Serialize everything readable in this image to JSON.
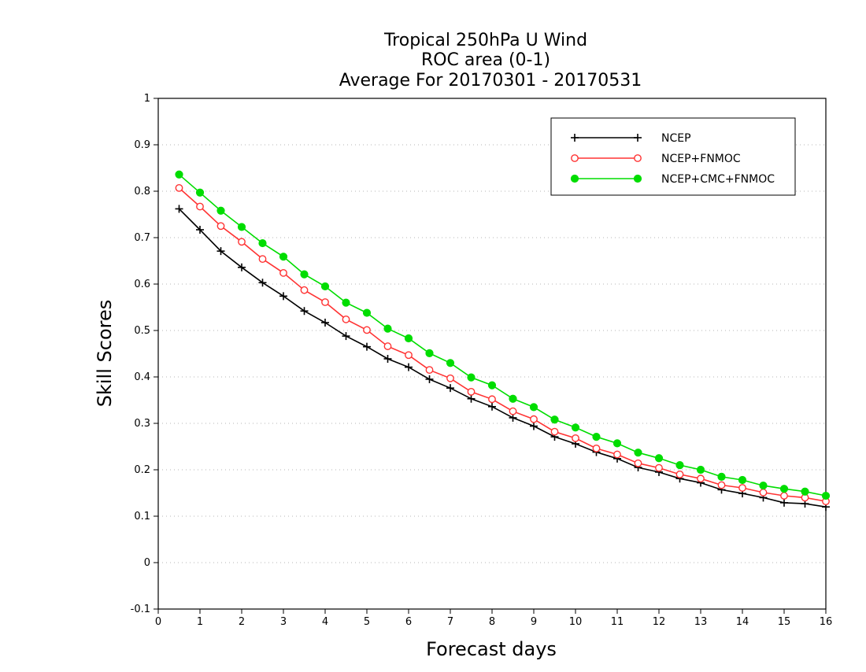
{
  "chart_data": {
    "type": "line",
    "title_lines": [
      "Tropical 250hPa U Wind",
      "ROC area (0-1)",
      "Average For 20170301 - 20170531"
    ],
    "xlabel": "Forecast days",
    "ylabel": "Skill Scores",
    "xlim": [
      0,
      16
    ],
    "ylim": [
      -0.1,
      1
    ],
    "xticks": [
      0,
      1,
      2,
      3,
      4,
      5,
      6,
      7,
      8,
      9,
      10,
      11,
      12,
      13,
      14,
      15,
      16
    ],
    "xtick_labels": [
      "0",
      "1",
      "2",
      "3",
      "4",
      "5",
      "6",
      "7",
      "8",
      "9",
      "10",
      "11",
      "12",
      "13",
      "14",
      "15",
      "16"
    ],
    "yticks": [
      -0.1,
      0,
      0.1,
      0.2,
      0.3,
      0.4,
      0.5,
      0.6,
      0.7,
      0.8,
      0.9,
      1
    ],
    "ytick_labels": [
      "-0.1",
      "0",
      "0.1",
      "0.2",
      "0.3",
      "0.4",
      "0.5",
      "0.6",
      "0.7",
      "0.8",
      "0.9",
      "1"
    ],
    "grid": "horizontal dotted",
    "legend_position": "top-right",
    "x": [
      0.5,
      1,
      1.5,
      2,
      2.5,
      3,
      3.5,
      4,
      4.5,
      5,
      5.5,
      6,
      6.5,
      7,
      7.5,
      8,
      8.5,
      9,
      9.5,
      10,
      10.5,
      11,
      11.5,
      12,
      12.5,
      13,
      13.5,
      14,
      14.5,
      15,
      15.5,
      16
    ],
    "series": [
      {
        "name": "NCEP",
        "color": "#000000",
        "marker": "plus",
        "values": [
          0.762,
          0.717,
          0.671,
          0.636,
          0.603,
          0.574,
          0.542,
          0.517,
          0.488,
          0.465,
          0.439,
          0.421,
          0.395,
          0.376,
          0.353,
          0.336,
          0.312,
          0.294,
          0.271,
          0.256,
          0.238,
          0.224,
          0.205,
          0.195,
          0.181,
          0.172,
          0.157,
          0.149,
          0.14,
          0.129,
          0.127,
          0.12
        ]
      },
      {
        "name": "NCEP+FNMOC",
        "color": "#ff3333",
        "marker": "open-circle",
        "values": [
          0.807,
          0.767,
          0.725,
          0.691,
          0.654,
          0.624,
          0.587,
          0.561,
          0.524,
          0.501,
          0.466,
          0.447,
          0.415,
          0.397,
          0.368,
          0.352,
          0.326,
          0.309,
          0.282,
          0.268,
          0.246,
          0.233,
          0.214,
          0.204,
          0.19,
          0.181,
          0.167,
          0.161,
          0.151,
          0.144,
          0.14,
          0.132
        ]
      },
      {
        "name": "NCEP+CMC+FNMOC",
        "color": "#00dd00",
        "marker": "filled-circle",
        "values": [
          0.836,
          0.797,
          0.758,
          0.723,
          0.688,
          0.659,
          0.621,
          0.595,
          0.56,
          0.538,
          0.504,
          0.483,
          0.451,
          0.43,
          0.399,
          0.382,
          0.353,
          0.335,
          0.308,
          0.291,
          0.271,
          0.257,
          0.237,
          0.225,
          0.21,
          0.2,
          0.185,
          0.178,
          0.166,
          0.159,
          0.153,
          0.144
        ]
      }
    ]
  }
}
